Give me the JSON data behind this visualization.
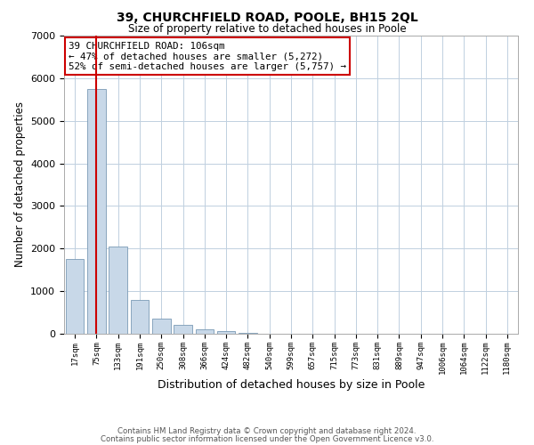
{
  "title": "39, CHURCHFIELD ROAD, POOLE, BH15 2QL",
  "subtitle": "Size of property relative to detached houses in Poole",
  "xlabel": "Distribution of detached houses by size in Poole",
  "ylabel": "Number of detached properties",
  "bin_labels": [
    "17sqm",
    "75sqm",
    "133sqm",
    "191sqm",
    "250sqm",
    "308sqm",
    "366sqm",
    "424sqm",
    "482sqm",
    "540sqm",
    "599sqm",
    "657sqm",
    "715sqm",
    "773sqm",
    "831sqm",
    "889sqm",
    "947sqm",
    "1006sqm",
    "1064sqm",
    "1122sqm",
    "1180sqm"
  ],
  "bar_values": [
    1750,
    5750,
    2050,
    800,
    360,
    210,
    110,
    55,
    30,
    10,
    5,
    0,
    0,
    0,
    0,
    0,
    0,
    0,
    0,
    0,
    0
  ],
  "bar_color": "#c8d8e8",
  "bar_edge_color": "#7a9ab5",
  "vline_x": 1.0,
  "vline_color": "#cc0000",
  "annotation_text": "39 CHURCHFIELD ROAD: 106sqm\n← 47% of detached houses are smaller (5,272)\n52% of semi-detached houses are larger (5,757) →",
  "annotation_box_color": "#ffffff",
  "annotation_box_edge": "#cc0000",
  "ylim": [
    0,
    7000
  ],
  "yticks": [
    0,
    1000,
    2000,
    3000,
    4000,
    5000,
    6000,
    7000
  ],
  "footer_line1": "Contains HM Land Registry data © Crown copyright and database right 2024.",
  "footer_line2": "Contains public sector information licensed under the Open Government Licence v3.0.",
  "bg_color": "#ffffff",
  "grid_color": "#c0d0e0"
}
